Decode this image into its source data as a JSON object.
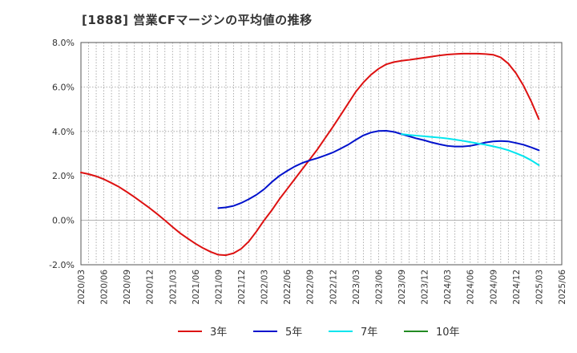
{
  "title": "[1888]  営業CFマージンの平均値の推移",
  "chart_data": {
    "type": "line",
    "title": "[1888]  営業CFマージンの平均値の推移",
    "xlabel": "",
    "ylabel": "",
    "ylim": [
      -2.0,
      8.0
    ],
    "yticks": [
      -2.0,
      0.0,
      2.0,
      4.0,
      6.0,
      8.0
    ],
    "ytick_labels": [
      "-2.0%",
      "0.0%",
      "2.0%",
      "4.0%",
      "6.0%",
      "8.0%"
    ],
    "x_ticks": [
      "2020/03",
      "2020/06",
      "2020/09",
      "2020/12",
      "2021/03",
      "2021/06",
      "2021/09",
      "2021/12",
      "2022/03",
      "2022/06",
      "2022/09",
      "2022/12",
      "2023/03",
      "2023/06",
      "2023/09",
      "2023/12",
      "2024/03",
      "2024/06",
      "2024/09",
      "2024/12",
      "2025/03",
      "2025/06"
    ],
    "grid": true,
    "legend_position": "bottom",
    "series": [
      {
        "name": "3年",
        "color": "#dd1111",
        "points": [
          [
            "2020/03",
            2.15
          ],
          [
            "2020/04",
            2.08
          ],
          [
            "2020/05",
            1.98
          ],
          [
            "2020/06",
            1.85
          ],
          [
            "2020/07",
            1.68
          ],
          [
            "2020/08",
            1.5
          ],
          [
            "2020/09",
            1.28
          ],
          [
            "2020/10",
            1.05
          ],
          [
            "2020/11",
            0.8
          ],
          [
            "2020/12",
            0.55
          ],
          [
            "2021/01",
            0.28
          ],
          [
            "2021/02",
            0.0
          ],
          [
            "2021/03",
            -0.3
          ],
          [
            "2021/04",
            -0.58
          ],
          [
            "2021/05",
            -0.82
          ],
          [
            "2021/06",
            -1.05
          ],
          [
            "2021/07",
            -1.25
          ],
          [
            "2021/08",
            -1.42
          ],
          [
            "2021/09",
            -1.55
          ],
          [
            "2021/10",
            -1.57
          ],
          [
            "2021/11",
            -1.48
          ],
          [
            "2021/12",
            -1.28
          ],
          [
            "2022/01",
            -0.95
          ],
          [
            "2022/02",
            -0.5
          ],
          [
            "2022/03",
            0.0
          ],
          [
            "2022/04",
            0.45
          ],
          [
            "2022/05",
            0.95
          ],
          [
            "2022/06",
            1.4
          ],
          [
            "2022/07",
            1.85
          ],
          [
            "2022/08",
            2.3
          ],
          [
            "2022/09",
            2.75
          ],
          [
            "2022/10",
            3.2
          ],
          [
            "2022/11",
            3.7
          ],
          [
            "2022/12",
            4.2
          ],
          [
            "2023/01",
            4.72
          ],
          [
            "2023/02",
            5.25
          ],
          [
            "2023/03",
            5.78
          ],
          [
            "2023/04",
            6.2
          ],
          [
            "2023/05",
            6.55
          ],
          [
            "2023/06",
            6.82
          ],
          [
            "2023/07",
            7.02
          ],
          [
            "2023/08",
            7.12
          ],
          [
            "2023/09",
            7.18
          ],
          [
            "2023/10",
            7.22
          ],
          [
            "2023/11",
            7.27
          ],
          [
            "2023/12",
            7.32
          ],
          [
            "2024/01",
            7.37
          ],
          [
            "2024/02",
            7.42
          ],
          [
            "2024/03",
            7.46
          ],
          [
            "2024/04",
            7.48
          ],
          [
            "2024/05",
            7.5
          ],
          [
            "2024/06",
            7.5
          ],
          [
            "2024/07",
            7.5
          ],
          [
            "2024/08",
            7.48
          ],
          [
            "2024/09",
            7.45
          ],
          [
            "2024/10",
            7.33
          ],
          [
            "2024/11",
            7.05
          ],
          [
            "2024/12",
            6.62
          ],
          [
            "2025/01",
            6.05
          ],
          [
            "2025/02",
            5.35
          ],
          [
            "2025/03",
            4.55
          ]
        ]
      },
      {
        "name": "5年",
        "color": "#0011cc",
        "points": [
          [
            "2021/09",
            0.55
          ],
          [
            "2021/10",
            0.58
          ],
          [
            "2021/11",
            0.65
          ],
          [
            "2021/12",
            0.78
          ],
          [
            "2022/01",
            0.95
          ],
          [
            "2022/02",
            1.15
          ],
          [
            "2022/03",
            1.4
          ],
          [
            "2022/04",
            1.72
          ],
          [
            "2022/05",
            2.0
          ],
          [
            "2022/06",
            2.22
          ],
          [
            "2022/07",
            2.42
          ],
          [
            "2022/08",
            2.58
          ],
          [
            "2022/09",
            2.7
          ],
          [
            "2022/10",
            2.8
          ],
          [
            "2022/11",
            2.92
          ],
          [
            "2022/12",
            3.05
          ],
          [
            "2023/01",
            3.22
          ],
          [
            "2023/02",
            3.4
          ],
          [
            "2023/03",
            3.62
          ],
          [
            "2023/04",
            3.82
          ],
          [
            "2023/05",
            3.95
          ],
          [
            "2023/06",
            4.02
          ],
          [
            "2023/07",
            4.03
          ],
          [
            "2023/08",
            3.98
          ],
          [
            "2023/09",
            3.88
          ],
          [
            "2023/10",
            3.78
          ],
          [
            "2023/11",
            3.68
          ],
          [
            "2023/12",
            3.6
          ],
          [
            "2024/01",
            3.5
          ],
          [
            "2024/02",
            3.42
          ],
          [
            "2024/03",
            3.35
          ],
          [
            "2024/04",
            3.32
          ],
          [
            "2024/05",
            3.32
          ],
          [
            "2024/06",
            3.35
          ],
          [
            "2024/07",
            3.42
          ],
          [
            "2024/08",
            3.5
          ],
          [
            "2024/09",
            3.55
          ],
          [
            "2024/10",
            3.57
          ],
          [
            "2024/11",
            3.55
          ],
          [
            "2024/12",
            3.48
          ],
          [
            "2025/01",
            3.4
          ],
          [
            "2025/02",
            3.28
          ],
          [
            "2025/03",
            3.15
          ]
        ]
      },
      {
        "name": "7年",
        "color": "#00e5ee",
        "points": [
          [
            "2023/09",
            3.88
          ],
          [
            "2023/10",
            3.84
          ],
          [
            "2023/11",
            3.81
          ],
          [
            "2023/12",
            3.78
          ],
          [
            "2024/01",
            3.75
          ],
          [
            "2024/02",
            3.72
          ],
          [
            "2024/03",
            3.68
          ],
          [
            "2024/04",
            3.63
          ],
          [
            "2024/05",
            3.58
          ],
          [
            "2024/06",
            3.52
          ],
          [
            "2024/07",
            3.46
          ],
          [
            "2024/08",
            3.4
          ],
          [
            "2024/09",
            3.33
          ],
          [
            "2024/10",
            3.25
          ],
          [
            "2024/11",
            3.15
          ],
          [
            "2024/12",
            3.02
          ],
          [
            "2025/01",
            2.88
          ],
          [
            "2025/02",
            2.7
          ],
          [
            "2025/03",
            2.48
          ]
        ]
      },
      {
        "name": "10年",
        "color": "#228b22",
        "points": []
      }
    ]
  }
}
